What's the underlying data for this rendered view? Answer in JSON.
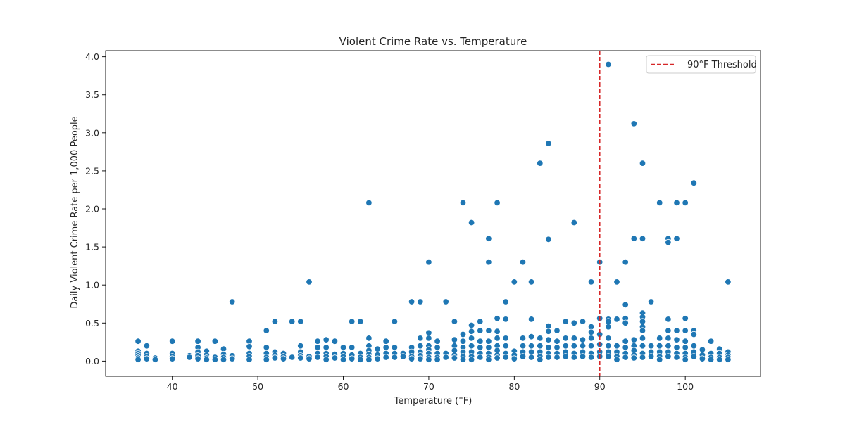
{
  "chart_data": {
    "type": "scatter",
    "title": "Violent Crime Rate vs. Temperature",
    "xlabel": "Temperature (°F)",
    "ylabel": "Daily Violent Crime Rate per 1,000 People",
    "xlim": [
      32.2,
      108.8
    ],
    "ylim": [
      -0.2,
      4.08
    ],
    "xticks": [
      40,
      50,
      60,
      70,
      80,
      90,
      100
    ],
    "yticks": [
      0.0,
      0.5,
      1.0,
      1.5,
      2.0,
      2.5,
      3.0,
      3.5,
      4.0
    ],
    "grid": false,
    "legend_position": "top-right",
    "colors": {
      "points": "#1f77b4",
      "threshold": "#d62728"
    },
    "threshold": {
      "x": 90,
      "label": "90°F Threshold",
      "style": "dashed"
    },
    "points": [
      [
        36,
        0.26
      ],
      [
        36,
        0.13
      ],
      [
        36,
        0.1
      ],
      [
        36,
        0.07
      ],
      [
        36,
        0.04
      ],
      [
        36,
        0.02
      ],
      [
        37,
        0.2
      ],
      [
        37,
        0.1
      ],
      [
        37,
        0.06
      ],
      [
        37,
        0.03
      ],
      [
        38,
        0.04
      ],
      [
        38,
        0.02
      ],
      [
        40,
        0.26
      ],
      [
        40,
        0.1
      ],
      [
        40,
        0.06
      ],
      [
        40,
        0.03
      ],
      [
        42,
        0.07
      ],
      [
        42,
        0.05
      ],
      [
        43,
        0.26
      ],
      [
        43,
        0.18
      ],
      [
        43,
        0.12
      ],
      [
        43,
        0.07
      ],
      [
        43,
        0.03
      ],
      [
        44,
        0.13
      ],
      [
        44,
        0.08
      ],
      [
        44,
        0.04
      ],
      [
        44,
        0.02
      ],
      [
        45,
        0.26
      ],
      [
        45,
        0.05
      ],
      [
        45,
        0.02
      ],
      [
        46,
        0.16
      ],
      [
        46,
        0.09
      ],
      [
        46,
        0.05
      ],
      [
        46,
        0.02
      ],
      [
        47,
        0.78
      ],
      [
        47,
        0.07
      ],
      [
        47,
        0.03
      ],
      [
        49,
        0.26
      ],
      [
        49,
        0.19
      ],
      [
        49,
        0.1
      ],
      [
        49,
        0.06
      ],
      [
        49,
        0.02
      ],
      [
        51,
        0.4
      ],
      [
        51,
        0.18
      ],
      [
        51,
        0.1
      ],
      [
        51,
        0.05
      ],
      [
        51,
        0.02
      ],
      [
        52,
        0.52
      ],
      [
        52,
        0.12
      ],
      [
        52,
        0.08
      ],
      [
        52,
        0.04
      ],
      [
        53,
        0.1
      ],
      [
        53,
        0.06
      ],
      [
        53,
        0.03
      ],
      [
        54,
        0.52
      ],
      [
        54,
        0.05
      ],
      [
        55,
        0.52
      ],
      [
        55,
        0.2
      ],
      [
        55,
        0.12
      ],
      [
        55,
        0.07
      ],
      [
        55,
        0.04
      ],
      [
        56,
        1.04
      ],
      [
        56,
        0.06
      ],
      [
        56,
        0.03
      ],
      [
        57,
        0.26
      ],
      [
        57,
        0.18
      ],
      [
        57,
        0.1
      ],
      [
        57,
        0.05
      ],
      [
        58,
        0.28
      ],
      [
        58,
        0.18
      ],
      [
        58,
        0.1
      ],
      [
        58,
        0.06
      ],
      [
        58,
        0.02
      ],
      [
        59,
        0.26
      ],
      [
        59,
        0.09
      ],
      [
        59,
        0.04
      ],
      [
        60,
        0.18
      ],
      [
        60,
        0.1
      ],
      [
        60,
        0.06
      ],
      [
        60,
        0.02
      ],
      [
        61,
        0.52
      ],
      [
        61,
        0.18
      ],
      [
        61,
        0.08
      ],
      [
        61,
        0.03
      ],
      [
        62,
        0.52
      ],
      [
        62,
        0.1
      ],
      [
        62,
        0.05
      ],
      [
        62,
        0.02
      ],
      [
        63,
        2.08
      ],
      [
        63,
        0.3
      ],
      [
        63,
        0.2
      ],
      [
        63,
        0.14
      ],
      [
        63,
        0.09
      ],
      [
        63,
        0.05
      ],
      [
        63,
        0.02
      ],
      [
        64,
        0.16
      ],
      [
        64,
        0.08
      ],
      [
        64,
        0.03
      ],
      [
        65,
        0.26
      ],
      [
        65,
        0.18
      ],
      [
        65,
        0.1
      ],
      [
        65,
        0.05
      ],
      [
        66,
        0.52
      ],
      [
        66,
        0.18
      ],
      [
        66,
        0.1
      ],
      [
        66,
        0.05
      ],
      [
        67,
        0.1
      ],
      [
        67,
        0.06
      ],
      [
        68,
        0.78
      ],
      [
        68,
        0.18
      ],
      [
        68,
        0.12
      ],
      [
        68,
        0.06
      ],
      [
        68,
        0.03
      ],
      [
        69,
        0.78
      ],
      [
        69,
        0.3
      ],
      [
        69,
        0.2
      ],
      [
        69,
        0.12
      ],
      [
        69,
        0.07
      ],
      [
        69,
        0.03
      ],
      [
        70,
        1.3
      ],
      [
        70,
        0.37
      ],
      [
        70,
        0.3
      ],
      [
        70,
        0.2
      ],
      [
        70,
        0.15
      ],
      [
        70,
        0.1
      ],
      [
        70,
        0.05
      ],
      [
        70,
        0.02
      ],
      [
        71,
        0.26
      ],
      [
        71,
        0.18
      ],
      [
        71,
        0.1
      ],
      [
        71,
        0.05
      ],
      [
        71,
        0.02
      ],
      [
        72,
        0.78
      ],
      [
        72,
        0.1
      ],
      [
        72,
        0.05
      ],
      [
        73,
        0.52
      ],
      [
        73,
        0.28
      ],
      [
        73,
        0.2
      ],
      [
        73,
        0.14
      ],
      [
        73,
        0.08
      ],
      [
        73,
        0.04
      ],
      [
        74,
        2.08
      ],
      [
        74,
        0.35
      ],
      [
        74,
        0.26
      ],
      [
        74,
        0.18
      ],
      [
        74,
        0.12
      ],
      [
        74,
        0.06
      ],
      [
        74,
        0.02
      ],
      [
        75,
        1.82
      ],
      [
        75,
        0.47
      ],
      [
        75,
        0.39
      ],
      [
        75,
        0.3
      ],
      [
        75,
        0.2
      ],
      [
        75,
        0.12
      ],
      [
        75,
        0.06
      ],
      [
        75,
        0.02
      ],
      [
        76,
        0.52
      ],
      [
        76,
        0.4
      ],
      [
        76,
        0.26
      ],
      [
        76,
        0.18
      ],
      [
        76,
        0.1
      ],
      [
        76,
        0.05
      ],
      [
        77,
        1.61
      ],
      [
        77,
        1.3
      ],
      [
        77,
        0.4
      ],
      [
        77,
        0.26
      ],
      [
        77,
        0.18
      ],
      [
        77,
        0.1
      ],
      [
        77,
        0.05
      ],
      [
        77,
        0.02
      ],
      [
        78,
        2.08
      ],
      [
        78,
        0.56
      ],
      [
        78,
        0.39
      ],
      [
        78,
        0.3
      ],
      [
        78,
        0.2
      ],
      [
        78,
        0.14
      ],
      [
        78,
        0.08
      ],
      [
        78,
        0.04
      ],
      [
        79,
        0.78
      ],
      [
        79,
        0.55
      ],
      [
        79,
        0.3
      ],
      [
        79,
        0.2
      ],
      [
        79,
        0.1
      ],
      [
        79,
        0.05
      ],
      [
        80,
        1.04
      ],
      [
        80,
        0.13
      ],
      [
        80,
        0.08
      ],
      [
        80,
        0.03
      ],
      [
        81,
        1.3
      ],
      [
        81,
        0.3
      ],
      [
        81,
        0.2
      ],
      [
        81,
        0.12
      ],
      [
        81,
        0.06
      ],
      [
        82,
        1.04
      ],
      [
        82,
        0.55
      ],
      [
        82,
        0.32
      ],
      [
        82,
        0.2
      ],
      [
        82,
        0.12
      ],
      [
        82,
        0.05
      ],
      [
        83,
        2.6
      ],
      [
        83,
        0.3
      ],
      [
        83,
        0.2
      ],
      [
        83,
        0.12
      ],
      [
        83,
        0.06
      ],
      [
        83,
        0.02
      ],
      [
        84,
        2.86
      ],
      [
        84,
        1.6
      ],
      [
        84,
        0.46
      ],
      [
        84,
        0.39
      ],
      [
        84,
        0.28
      ],
      [
        84,
        0.18
      ],
      [
        84,
        0.1
      ],
      [
        84,
        0.05
      ],
      [
        85,
        0.4
      ],
      [
        85,
        0.26
      ],
      [
        85,
        0.18
      ],
      [
        85,
        0.1
      ],
      [
        85,
        0.05
      ],
      [
        86,
        0.52
      ],
      [
        86,
        0.3
      ],
      [
        86,
        0.2
      ],
      [
        86,
        0.12
      ],
      [
        86,
        0.06
      ],
      [
        87,
        1.82
      ],
      [
        87,
        0.5
      ],
      [
        87,
        0.3
      ],
      [
        87,
        0.2
      ],
      [
        87,
        0.1
      ],
      [
        87,
        0.05
      ],
      [
        88,
        0.52
      ],
      [
        88,
        0.28
      ],
      [
        88,
        0.2
      ],
      [
        88,
        0.12
      ],
      [
        88,
        0.06
      ],
      [
        89,
        1.04
      ],
      [
        89,
        0.45
      ],
      [
        89,
        0.38
      ],
      [
        89,
        0.3
      ],
      [
        89,
        0.2
      ],
      [
        89,
        0.1
      ],
      [
        89,
        0.05
      ],
      [
        90,
        1.3
      ],
      [
        90,
        0.56
      ],
      [
        90,
        0.35
      ],
      [
        90,
        0.22
      ],
      [
        90,
        0.12
      ],
      [
        90,
        0.06
      ],
      [
        91,
        3.9
      ],
      [
        91,
        0.55
      ],
      [
        91,
        0.52
      ],
      [
        91,
        0.45
      ],
      [
        91,
        0.3
      ],
      [
        91,
        0.2
      ],
      [
        91,
        0.12
      ],
      [
        91,
        0.06
      ],
      [
        92,
        1.04
      ],
      [
        92,
        0.55
      ],
      [
        92,
        0.2
      ],
      [
        92,
        0.12
      ],
      [
        92,
        0.06
      ],
      [
        92,
        0.02
      ],
      [
        93,
        1.3
      ],
      [
        93,
        0.74
      ],
      [
        93,
        0.56
      ],
      [
        93,
        0.5
      ],
      [
        93,
        0.26
      ],
      [
        93,
        0.18
      ],
      [
        93,
        0.1
      ],
      [
        93,
        0.05
      ],
      [
        94,
        3.12
      ],
      [
        94,
        1.61
      ],
      [
        94,
        0.28
      ],
      [
        94,
        0.2
      ],
      [
        94,
        0.14
      ],
      [
        94,
        0.08
      ],
      [
        94,
        0.04
      ],
      [
        95,
        2.6
      ],
      [
        95,
        1.61
      ],
      [
        95,
        0.63
      ],
      [
        95,
        0.58
      ],
      [
        95,
        0.52
      ],
      [
        95,
        0.45
      ],
      [
        95,
        0.4
      ],
      [
        95,
        0.3
      ],
      [
        95,
        0.2
      ],
      [
        95,
        0.1
      ],
      [
        95,
        0.05
      ],
      [
        96,
        0.78
      ],
      [
        96,
        0.2
      ],
      [
        96,
        0.12
      ],
      [
        96,
        0.06
      ],
      [
        97,
        2.08
      ],
      [
        97,
        0.3
      ],
      [
        97,
        0.2
      ],
      [
        97,
        0.12
      ],
      [
        97,
        0.06
      ],
      [
        97,
        0.02
      ],
      [
        98,
        1.61
      ],
      [
        98,
        1.56
      ],
      [
        98,
        0.55
      ],
      [
        98,
        0.4
      ],
      [
        98,
        0.3
      ],
      [
        98,
        0.2
      ],
      [
        98,
        0.12
      ],
      [
        98,
        0.06
      ],
      [
        99,
        2.08
      ],
      [
        99,
        1.61
      ],
      [
        99,
        0.4
      ],
      [
        99,
        0.28
      ],
      [
        99,
        0.18
      ],
      [
        99,
        0.1
      ],
      [
        99,
        0.05
      ],
      [
        100,
        2.08
      ],
      [
        100,
        0.56
      ],
      [
        100,
        0.4
      ],
      [
        100,
        0.26
      ],
      [
        100,
        0.18
      ],
      [
        100,
        0.1
      ],
      [
        100,
        0.05
      ],
      [
        100,
        0.02
      ],
      [
        101,
        2.34
      ],
      [
        101,
        0.4
      ],
      [
        101,
        0.35
      ],
      [
        101,
        0.2
      ],
      [
        101,
        0.12
      ],
      [
        101,
        0.06
      ],
      [
        102,
        0.15
      ],
      [
        102,
        0.08
      ],
      [
        102,
        0.03
      ],
      [
        103,
        0.26
      ],
      [
        103,
        0.1
      ],
      [
        103,
        0.05
      ],
      [
        103,
        0.02
      ],
      [
        104,
        0.16
      ],
      [
        104,
        0.1
      ],
      [
        104,
        0.05
      ],
      [
        104,
        0.02
      ],
      [
        105,
        1.04
      ],
      [
        105,
        0.12
      ],
      [
        105,
        0.08
      ],
      [
        105,
        0.05
      ],
      [
        105,
        0.02
      ]
    ]
  }
}
